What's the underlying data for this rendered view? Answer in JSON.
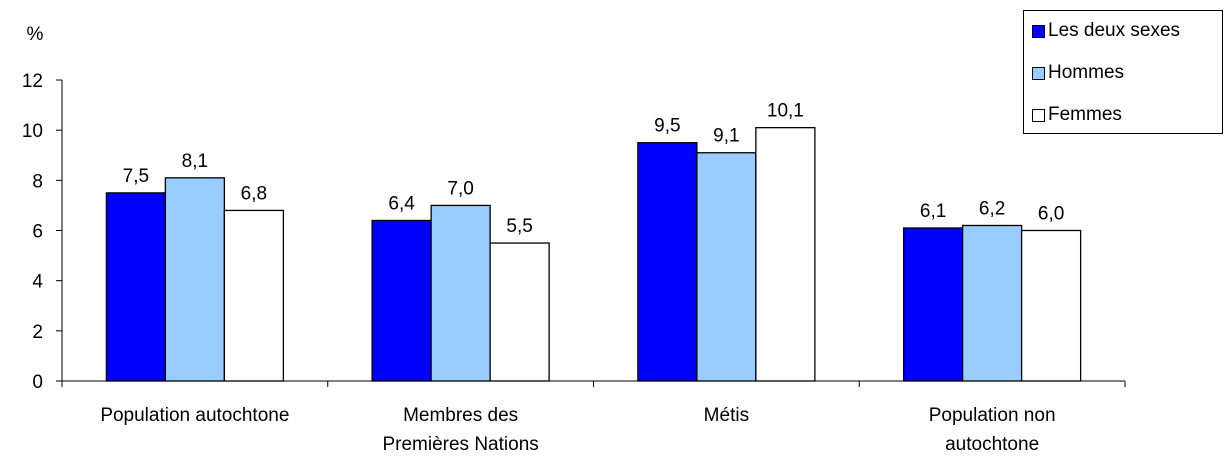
{
  "chart_data": {
    "type": "bar",
    "title": "",
    "ylabel": "%",
    "xlabel": "",
    "ylim": [
      0,
      12
    ],
    "yticks": [
      0,
      2,
      4,
      6,
      8,
      10,
      12
    ],
    "categories": [
      [
        "Population autochtone"
      ],
      [
        "Membres des",
        "Premières Nations"
      ],
      [
        "Métis"
      ],
      [
        "Population non",
        "autochtone"
      ]
    ],
    "series": [
      {
        "name": "Les deux sexes",
        "color": "#0000ff",
        "values": [
          7.5,
          6.4,
          9.5,
          6.1
        ],
        "labels": [
          "7,5",
          "6,4",
          "9,5",
          "6,1"
        ]
      },
      {
        "name": "Hommes",
        "color": "#99ccff",
        "values": [
          8.1,
          7.0,
          9.1,
          6.2
        ],
        "labels": [
          "8,1",
          "7,0",
          "9,1",
          "6,2"
        ]
      },
      {
        "name": "Femmes",
        "color": "#ffffff",
        "values": [
          6.8,
          5.5,
          10.1,
          6.0
        ],
        "labels": [
          "6,8",
          "5,5",
          "10,1",
          "6,0"
        ]
      }
    ],
    "legend_position": "top-right",
    "grid": false
  }
}
